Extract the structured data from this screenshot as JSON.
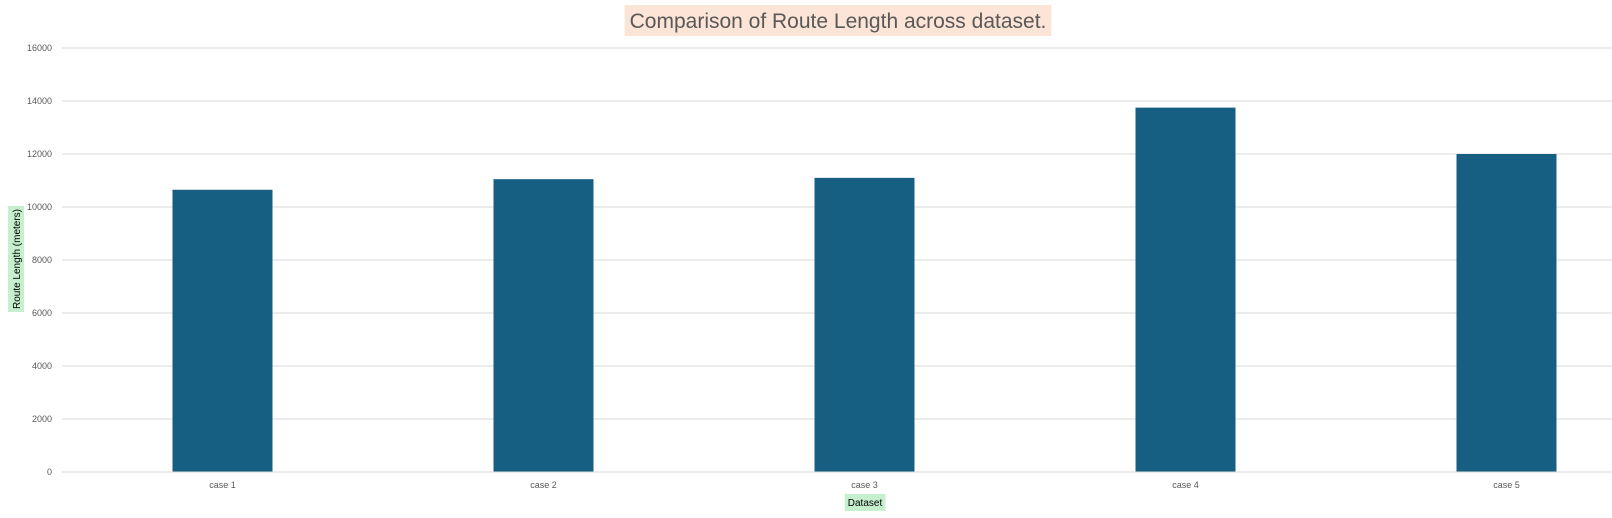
{
  "chart_data": {
    "type": "bar",
    "title": "Comparison of Route Length across dataset.",
    "xlabel": "Dataset",
    "ylabel": "Route Length (meters)",
    "categories": [
      "case 1",
      "case 2",
      "case 3",
      "case 4",
      "case 5"
    ],
    "values": [
      10650,
      11050,
      11100,
      13750,
      12000
    ],
    "ylim": [
      0,
      16000
    ],
    "yticks": [
      0,
      2000,
      4000,
      6000,
      8000,
      10000,
      12000,
      14000,
      16000
    ],
    "grid": true,
    "legend": "none",
    "colors": {
      "bar": "#175f82",
      "title_background": "#fce4d6",
      "axis_label_background": "#c6efce"
    }
  }
}
